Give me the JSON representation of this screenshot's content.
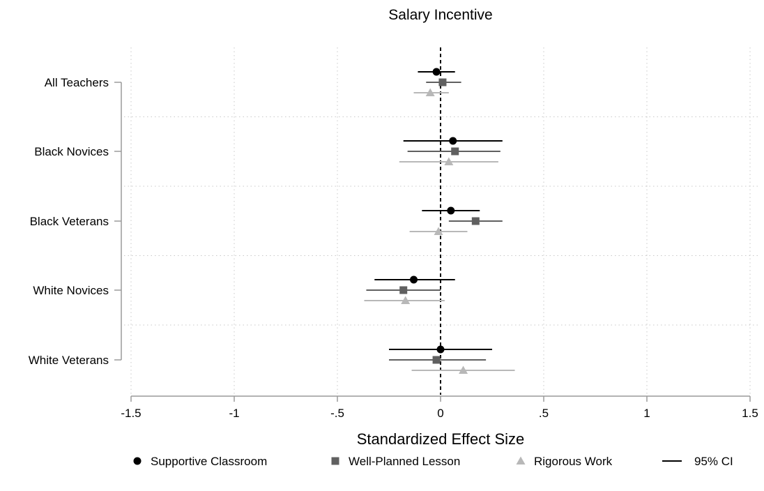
{
  "chart_data": {
    "type": "forest",
    "title": "Salary Incentive",
    "xlabel": "Standardized Effect Size",
    "xlim": [
      -1.5,
      1.5
    ],
    "xticks": [
      {
        "value": -1.5,
        "label": "-1.5"
      },
      {
        "value": -1,
        "label": "-1"
      },
      {
        "value": -0.5,
        "label": "-.5"
      },
      {
        "value": 0,
        "label": "0"
      },
      {
        "value": 0.5,
        "label": ".5"
      },
      {
        "value": 1,
        "label": "1"
      },
      {
        "value": 1.5,
        "label": "1.5"
      }
    ],
    "reference_line": 0,
    "grid": true,
    "legend_position": "bottom",
    "groups": [
      "All Teachers",
      "Black Novices",
      "Black Veterans",
      "White Novices",
      "White Veterans"
    ],
    "series": [
      {
        "name": "Supportive Classroom",
        "marker": "circle",
        "color": "#000000",
        "points": [
          {
            "estimate": -0.02,
            "ci_low": -0.11,
            "ci_high": 0.07
          },
          {
            "estimate": 0.06,
            "ci_low": -0.18,
            "ci_high": 0.3
          },
          {
            "estimate": 0.05,
            "ci_low": -0.09,
            "ci_high": 0.19
          },
          {
            "estimate": -0.13,
            "ci_low": -0.32,
            "ci_high": 0.07
          },
          {
            "estimate": 0.0,
            "ci_low": -0.25,
            "ci_high": 0.25
          }
        ]
      },
      {
        "name": "Well-Planned Lesson",
        "marker": "square",
        "color": "#606060",
        "points": [
          {
            "estimate": 0.01,
            "ci_low": -0.07,
            "ci_high": 0.1
          },
          {
            "estimate": 0.07,
            "ci_low": -0.16,
            "ci_high": 0.29
          },
          {
            "estimate": 0.17,
            "ci_low": 0.04,
            "ci_high": 0.3
          },
          {
            "estimate": -0.18,
            "ci_low": -0.36,
            "ci_high": 0.0
          },
          {
            "estimate": -0.02,
            "ci_low": -0.25,
            "ci_high": 0.22
          }
        ]
      },
      {
        "name": "Rigorous Work",
        "marker": "triangle",
        "color": "#b8b8b8",
        "points": [
          {
            "estimate": -0.05,
            "ci_low": -0.13,
            "ci_high": 0.04
          },
          {
            "estimate": 0.04,
            "ci_low": -0.2,
            "ci_high": 0.28
          },
          {
            "estimate": -0.01,
            "ci_low": -0.15,
            "ci_high": 0.13
          },
          {
            "estimate": -0.17,
            "ci_low": -0.37,
            "ci_high": 0.02
          },
          {
            "estimate": 0.11,
            "ci_low": -0.14,
            "ci_high": 0.36
          }
        ]
      }
    ],
    "legend": [
      {
        "label": "Supportive Classroom",
        "marker": "circle",
        "color": "#000000"
      },
      {
        "label": "Well-Planned Lesson",
        "marker": "square",
        "color": "#606060"
      },
      {
        "label": "Rigorous Work",
        "marker": "triangle",
        "color": "#b8b8b8"
      },
      {
        "label": "95% CI",
        "marker": "line",
        "color": "#000000"
      }
    ]
  }
}
